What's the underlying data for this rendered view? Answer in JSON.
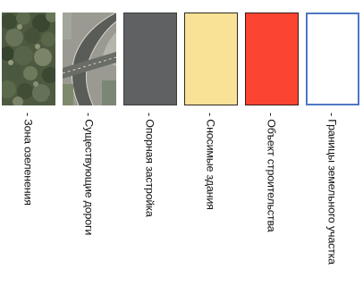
{
  "legend": {
    "items": [
      {
        "label": "- Зона озеленения",
        "swatch": "texture",
        "texture": "trees-aerial-icon"
      },
      {
        "label": "- Существующие дороги",
        "swatch": "texture",
        "texture": "road-aerial-icon"
      },
      {
        "label": "- Опорная застройка",
        "swatch": "fill",
        "fill": "#5f6162",
        "border": "#3a3c3d"
      },
      {
        "label": "- Сносимые здания",
        "swatch": "fill",
        "fill": "#f9e196",
        "border": "#2e2a20"
      },
      {
        "label": "- Объект строительства",
        "swatch": "fill",
        "fill": "#fb4531",
        "border": "#3a1a14"
      },
      {
        "label": "- Границы земельного участка",
        "swatch": "fill",
        "fill": "#ffffff",
        "border": "#4d78c4"
      }
    ]
  }
}
